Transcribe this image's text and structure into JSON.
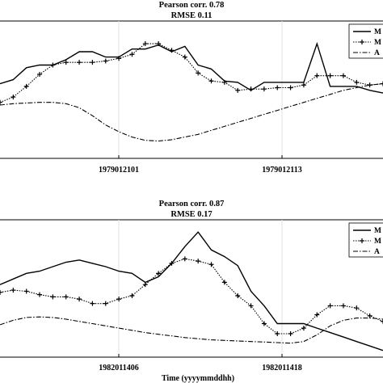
{
  "chart_data": [
    {
      "type": "line",
      "title_lines": [
        "Pearson corr. 0.78",
        "RMSE 0.11"
      ],
      "x_tick_labels": [
        "1979012101",
        "1979012113"
      ],
      "xlabel": "",
      "legend": {
        "placement": "top-right",
        "labels": [
          "M",
          "M",
          "A"
        ]
      },
      "grid": {
        "x": true,
        "y": false
      },
      "series": [
        {
          "style": "solid",
          "color": "#000000",
          "values": [
            3.0,
            3.3,
            4.2,
            4.4,
            4.4,
            4.8,
            5.4,
            5.4,
            5.0,
            5.0,
            5.6,
            5.6,
            5.9,
            5.4,
            5.8,
            4.4,
            4.1,
            3.2,
            3.1,
            2.5,
            3.1,
            3.1,
            3.1,
            3.1,
            6.0,
            2.8,
            2.8,
            2.8,
            2.5,
            2.3
          ]
        },
        {
          "style": "dotted",
          "color": "#000000",
          "marker": "plus",
          "values": [
            1.6,
            2.0,
            2.8,
            3.7,
            4.4,
            4.6,
            4.6,
            4.6,
            4.7,
            4.9,
            5.2,
            6.0,
            6.0,
            5.5,
            5.0,
            3.8,
            3.2,
            3.1,
            2.5,
            2.6,
            2.6,
            2.7,
            2.7,
            2.9,
            3.6,
            3.6,
            3.6,
            3.1,
            2.9,
            3.0
          ]
        },
        {
          "style": "dashdot",
          "color": "#000000",
          "values": [
            1.4,
            1.5,
            1.55,
            1.6,
            1.6,
            1.5,
            1.2,
            0.6,
            -0.1,
            -0.6,
            -1.0,
            -1.25,
            -1.3,
            -1.2,
            -1.0,
            -0.8,
            -0.5,
            -0.2,
            0.1,
            0.4,
            0.7,
            1.0,
            1.3,
            1.6,
            1.9,
            2.2,
            2.5,
            2.7,
            2.9,
            3.0
          ]
        }
      ]
    },
    {
      "type": "line",
      "title_lines": [
        "Pearson corr. 0.87",
        "RMSE 0.17"
      ],
      "x_tick_labels": [
        "1982011406",
        "1982011418"
      ],
      "xlabel": "Time (yyyymmddhh)",
      "legend": {
        "placement": "top-right",
        "labels": [
          "M",
          "M",
          "A"
        ]
      },
      "grid": {
        "x": true,
        "y": false
      },
      "series": [
        {
          "style": "solid",
          "color": "#000000",
          "values": [
            3.5,
            4.0,
            4.5,
            4.7,
            5.1,
            5.5,
            5.7,
            5.4,
            5.1,
            4.7,
            4.5,
            3.7,
            4.2,
            5.4,
            6.9,
            8.2,
            6.6,
            6.0,
            5.2,
            2.9,
            1.6,
            0.0,
            0.0,
            0.0,
            -0.4,
            -0.8,
            -1.2,
            -1.6,
            -2.0,
            -2.4
          ]
        },
        {
          "style": "dotted",
          "color": "#000000",
          "marker": "plus",
          "values": [
            2.8,
            3.0,
            2.9,
            2.6,
            2.4,
            2.4,
            2.2,
            1.8,
            1.8,
            2.2,
            2.5,
            3.5,
            4.5,
            5.4,
            5.8,
            5.6,
            5.3,
            3.7,
            2.5,
            1.6,
            0.0,
            -0.9,
            -0.9,
            -0.4,
            0.8,
            1.6,
            1.6,
            1.4,
            0.7,
            0.2
          ]
        },
        {
          "style": "dashdot",
          "color": "#000000",
          "values": [
            -0.1,
            0.3,
            0.55,
            0.6,
            0.55,
            0.4,
            0.2,
            0.0,
            -0.2,
            -0.4,
            -0.6,
            -0.8,
            -0.95,
            -1.1,
            -1.25,
            -1.35,
            -1.45,
            -1.5,
            -1.55,
            -1.6,
            -1.65,
            -1.7,
            -1.75,
            -1.6,
            -1.0,
            -0.2,
            0.3,
            0.5,
            0.5,
            0.4
          ]
        }
      ]
    }
  ]
}
